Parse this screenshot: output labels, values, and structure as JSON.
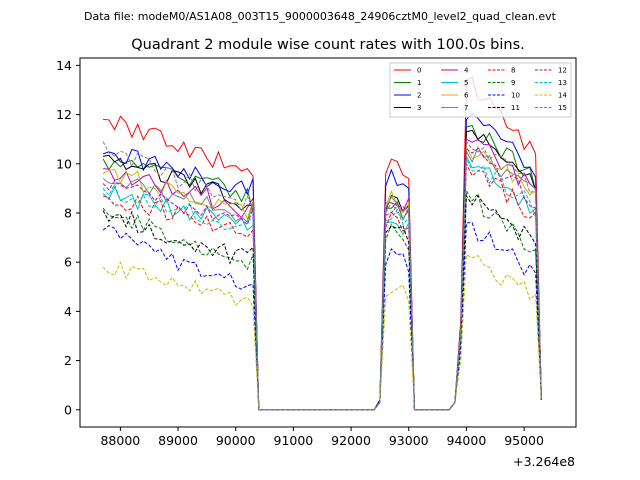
{
  "header": "Data file: modeM0/AS1A08_003T15_9000003648_24906cztM0_level2_quad_clean.evt",
  "chart_data": {
    "type": "line",
    "title": "Quadrant 2 module wise count rates with 100.0s bins.",
    "xlabel": "",
    "ylabel": "",
    "x_offset_label": "+3.264e8",
    "xlim": [
      87300,
      95900
    ],
    "ylim": [
      -0.7,
      14.3
    ],
    "x_ticks": [
      88000,
      89000,
      90000,
      91000,
      92000,
      93000,
      94000,
      95000
    ],
    "y_ticks": [
      0,
      2,
      4,
      6,
      8,
      10,
      12,
      14
    ],
    "legend_position": "top-right",
    "segments": [
      {
        "name": "seg1",
        "x_start": 87700,
        "x_end": 90200
      },
      {
        "name": "seg2",
        "x_start": 92600,
        "x_end": 92900
      },
      {
        "name": "seg3",
        "x_start": 94000,
        "x_end": 95200
      }
    ],
    "gap_points": [
      [
        90300,
        null
      ],
      [
        90400,
        0
      ],
      [
        90500,
        0
      ],
      [
        92400,
        0
      ],
      [
        92500,
        null
      ],
      [
        93000,
        null
      ],
      [
        93100,
        0
      ],
      [
        93700,
        0
      ],
      [
        93800,
        null
      ],
      [
        93900,
        null
      ],
      [
        95300,
        null
      ]
    ],
    "series": [
      {
        "name": "0",
        "color": "#ff0000",
        "dash": "solid",
        "seg1": [
          11.8,
          10.9,
          9.6
        ],
        "seg2": [
          9.6,
          10.3,
          9.5
        ],
        "seg3": [
          13.4,
          11.9,
          10.4
        ],
        "gap": [
          9.5,
          0.4,
          0,
          0,
          0.4,
          9.4,
          0.1,
          0,
          0.3,
          3.6,
          0.4
        ]
      },
      {
        "name": "1",
        "color": "#008000",
        "dash": "solid",
        "seg1": [
          10.2,
          9.8,
          8.7
        ],
        "seg2": [
          8.2,
          8.9,
          8.0
        ],
        "seg3": [
          11.5,
          10.8,
          9.3
        ],
        "gap": [
          8.0,
          0.4,
          0,
          0,
          0.3,
          8.2,
          0.1,
          0,
          0.3,
          3.2,
          0.4
        ]
      },
      {
        "name": "2",
        "color": "#0000ff",
        "dash": "solid",
        "seg1": [
          10.4,
          10.0,
          8.9
        ],
        "seg2": [
          9.1,
          9.7,
          9.0
        ],
        "seg3": [
          11.8,
          11.2,
          9.6
        ],
        "gap": [
          9.4,
          0.4,
          0,
          0,
          0.4,
          9.0,
          0.1,
          0,
          0.3,
          3.4,
          0.4
        ]
      },
      {
        "name": "3",
        "color": "#000000",
        "dash": "solid",
        "seg1": [
          10.3,
          9.6,
          8.4
        ],
        "seg2": [
          8.1,
          8.8,
          8.1
        ],
        "seg3": [
          11.3,
          10.6,
          9.2
        ],
        "gap": [
          8.3,
          0.4,
          0,
          0,
          0.3,
          8.3,
          0.1,
          0,
          0.3,
          3.2,
          0.4
        ]
      },
      {
        "name": "4",
        "color": "#bf00bf",
        "dash": "solid",
        "seg1": [
          9.8,
          9.1,
          8.1
        ],
        "seg2": [
          8.4,
          9.0,
          8.3
        ],
        "seg3": [
          11.0,
          10.2,
          8.9
        ],
        "gap": [
          8.6,
          0.4,
          0,
          0,
          0.3,
          8.6,
          0.1,
          0,
          0.3,
          3.2,
          0.4
        ]
      },
      {
        "name": "5",
        "color": "#00bfbf",
        "dash": "solid",
        "seg1": [
          8.8,
          8.3,
          7.5
        ],
        "seg2": [
          7.6,
          8.4,
          7.5
        ],
        "seg3": [
          10.3,
          9.3,
          7.8
        ],
        "gap": [
          7.5,
          0.4,
          0,
          0,
          0.3,
          7.6,
          0.1,
          0,
          0.3,
          3.0,
          0.4
        ]
      },
      {
        "name": "6",
        "color": "#bfbf00",
        "dash": "solid",
        "seg1": [
          9.6,
          9.0,
          8.0
        ],
        "seg2": [
          8.3,
          8.9,
          8.2
        ],
        "seg3": [
          10.7,
          10.0,
          8.8
        ],
        "gap": [
          8.5,
          0.4,
          0,
          0,
          0.3,
          8.4,
          0.1,
          0,
          0.3,
          3.2,
          0.4
        ]
      },
      {
        "name": "7",
        "color": "#808080",
        "dash": "solid",
        "seg1": [
          9.4,
          8.8,
          7.9
        ],
        "seg2": [
          8.2,
          8.7,
          8.0
        ],
        "seg3": [
          10.5,
          9.9,
          8.7
        ],
        "gap": [
          8.4,
          0.4,
          0,
          0,
          0.3,
          8.2,
          0.1,
          0,
          0.3,
          3.1,
          0.4
        ]
      },
      {
        "name": "8",
        "color": "#ff0000",
        "dash": "dashed",
        "seg1": [
          8.7,
          8.0,
          7.1
        ],
        "seg2": [
          7.4,
          8.1,
          7.3
        ],
        "seg3": [
          10.0,
          8.9,
          7.9
        ],
        "gap": [
          7.3,
          0.4,
          0,
          0,
          0.3,
          7.4,
          0.1,
          0,
          0.3,
          3.0,
          0.4
        ]
      },
      {
        "name": "9",
        "color": "#008000",
        "dash": "dashed",
        "seg1": [
          8.2,
          6.9,
          5.9
        ],
        "seg2": [
          6.9,
          7.6,
          7.0
        ],
        "seg3": [
          8.9,
          7.5,
          6.4
        ],
        "gap": [
          6.3,
          0.4,
          0,
          0,
          0.3,
          6.5,
          0.1,
          0,
          0.3,
          2.7,
          0.4
        ]
      },
      {
        "name": "10",
        "color": "#0000ff",
        "dash": "dashed",
        "seg1": [
          7.3,
          5.8,
          5.0
        ],
        "seg2": [
          5.9,
          6.8,
          6.2
        ],
        "seg3": [
          7.6,
          6.4,
          5.6
        ],
        "gap": [
          5.1,
          0.4,
          0,
          0,
          0.3,
          5.6,
          0.1,
          0,
          0.3,
          2.4,
          0.4
        ]
      },
      {
        "name": "11",
        "color": "#000000",
        "dash": "dashed",
        "seg1": [
          8.1,
          7.0,
          6.1
        ],
        "seg2": [
          7.2,
          7.9,
          7.3
        ],
        "seg3": [
          8.7,
          7.8,
          6.8
        ],
        "gap": [
          6.6,
          0.4,
          0,
          0,
          0.3,
          6.8,
          0.1,
          0,
          0.3,
          2.8,
          0.4
        ]
      },
      {
        "name": "12",
        "color": "#bf00bf",
        "dash": "dashed",
        "seg1": [
          9.2,
          8.4,
          7.6
        ],
        "seg2": [
          7.9,
          8.6,
          7.9
        ],
        "seg3": [
          10.6,
          9.6,
          8.5
        ],
        "gap": [
          8.2,
          0.4,
          0,
          0,
          0.3,
          8.0,
          0.1,
          0,
          0.3,
          3.1,
          0.4
        ]
      },
      {
        "name": "13",
        "color": "#00bfbf",
        "dash": "dashed",
        "seg1": [
          9.0,
          8.2,
          7.4
        ],
        "seg2": [
          7.7,
          8.3,
          7.6
        ],
        "seg3": [
          10.2,
          9.2,
          8.2
        ],
        "gap": [
          7.8,
          0.4,
          0,
          0,
          0.3,
          7.8,
          0.1,
          0,
          0.3,
          3.0,
          0.4
        ]
      },
      {
        "name": "14",
        "color": "#bfbf00",
        "dash": "dashed",
        "seg1": [
          5.8,
          5.0,
          4.5
        ],
        "seg2": [
          4.6,
          5.2,
          4.9
        ],
        "seg3": [
          6.3,
          5.2,
          4.7
        ],
        "gap": [
          4.2,
          0.4,
          0,
          0,
          0.3,
          4.4,
          0.1,
          0,
          0.3,
          2.0,
          0.4
        ]
      },
      {
        "name": "15",
        "color": "#808080",
        "dash": "dashed",
        "seg1": [
          10.9,
          9.3,
          8.3
        ],
        "seg2": [
          8.0,
          8.6,
          7.9
        ],
        "seg3": [
          10.9,
          10.0,
          8.9
        ],
        "gap": [
          8.1,
          0.4,
          0,
          0,
          0.3,
          8.1,
          0.1,
          0,
          0.3,
          3.2,
          0.4
        ]
      }
    ]
  }
}
